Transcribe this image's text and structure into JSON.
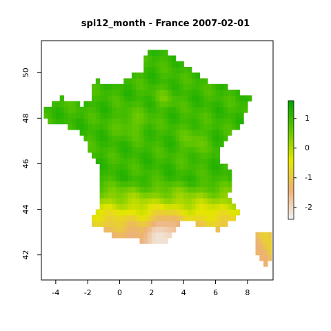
{
  "title": "spi12_month - France 2007-02-01",
  "map": {
    "x_ticks": [
      -4,
      -2,
      0,
      2,
      4,
      6,
      8
    ],
    "y_ticks": [
      42,
      44,
      46,
      48,
      50
    ],
    "xlim": [
      -4.9,
      9.6
    ],
    "ylim": [
      40.9,
      51.4
    ]
  },
  "legend": {
    "ticks": [
      1,
      0,
      -1,
      -2
    ],
    "range": [
      -2.4,
      1.6
    ],
    "colors": [
      "#f2f2f2",
      "#ecb176",
      "#e6e600",
      "#63c600",
      "#00a600"
    ]
  }
}
